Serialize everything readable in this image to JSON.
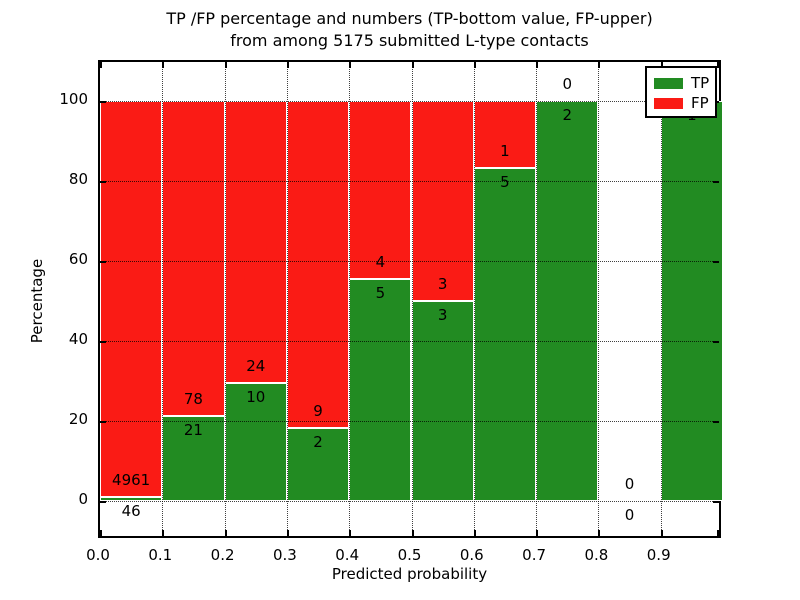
{
  "title_line1": "TP /FP percentage and numbers (TP-bottom value, FP-upper)",
  "title_line2": "from among 5175 submitted L-type contacts",
  "axes": {
    "xlabel": "Predicted probability",
    "ylabel": "Percentage",
    "x_tick_labels": [
      "0.0",
      "0.1",
      "0.2",
      "0.3",
      "0.4",
      "0.5",
      "0.6",
      "0.7",
      "0.8",
      "0.9"
    ],
    "y_tick_labels": [
      "0",
      "20",
      "40",
      "60",
      "80",
      "100"
    ],
    "y_tick_values": [
      0,
      20,
      40,
      60,
      80,
      100
    ]
  },
  "legend": {
    "position": "upper right",
    "items": [
      {
        "label": "TP",
        "color": "#228b22"
      },
      {
        "label": "FP",
        "color": "#fa1b15"
      }
    ]
  },
  "chart_data": {
    "type": "bar",
    "stacked": true,
    "title": "TP /FP percentage and numbers (TP-bottom value, FP-upper) from among 5175 submitted L-type contacts",
    "xlabel": "Predicted probability",
    "ylabel": "Percentage",
    "bin_edges": [
      0.0,
      0.1,
      0.2,
      0.3,
      0.4,
      0.5,
      0.6,
      0.7,
      0.8,
      0.9,
      1.0
    ],
    "x_tick_labels": [
      "0.0",
      "0.1",
      "0.2",
      "0.3",
      "0.4",
      "0.5",
      "0.6",
      "0.7",
      "0.8",
      "0.9"
    ],
    "y_ticks": [
      0,
      20,
      40,
      60,
      80,
      100
    ],
    "ylim": [
      -9.75,
      109.75
    ],
    "grid": "dotted black, horizontal at y ticks and vertical at bin edges, drawn over bars",
    "bar_edge_color": "#ffffff",
    "total_contacts": 5175,
    "annotation_rule": "FP count printed just above the TP/FP boundary of each bar, TP count just below it",
    "series": [
      {
        "name": "TP",
        "color": "#228b22",
        "counts": [
          46,
          21,
          10,
          2,
          5,
          3,
          5,
          2,
          0,
          1
        ]
      },
      {
        "name": "FP",
        "color": "#fa1b15",
        "counts": [
          4961,
          78,
          24,
          9,
          4,
          3,
          1,
          0,
          0,
          0
        ]
      }
    ],
    "tp_percent_of_bin": [
      0.92,
      21.21,
      29.41,
      18.18,
      55.56,
      50.0,
      83.33,
      100.0,
      null,
      100.0
    ],
    "bars_drawn_to_percent": 100
  }
}
